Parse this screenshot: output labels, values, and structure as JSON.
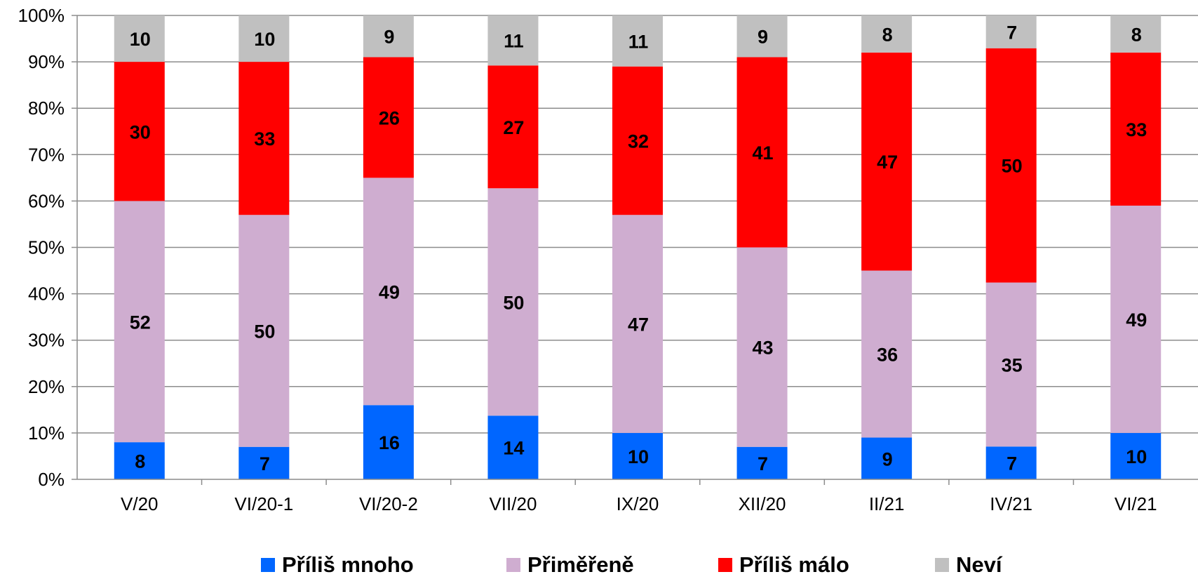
{
  "chart_data": {
    "type": "bar",
    "stacked": true,
    "percent": true,
    "categories": [
      "V/20",
      "VI/20-1",
      "VI/20-2",
      "VII/20",
      "IX/20",
      "XII/20",
      "II/21",
      "IV/21",
      "VI/21"
    ],
    "series": [
      {
        "name": "Příliš mnoho",
        "color": "#0066ff",
        "values": [
          8,
          7,
          16,
          14,
          10,
          7,
          9,
          7,
          10
        ]
      },
      {
        "name": "Přiměřeně",
        "color": "#cfadd0",
        "values": [
          52,
          50,
          49,
          50,
          47,
          43,
          36,
          35,
          49
        ]
      },
      {
        "name": "Příliš málo",
        "color": "#ff0000",
        "values": [
          30,
          33,
          26,
          27,
          32,
          41,
          47,
          50,
          33
        ]
      },
      {
        "name": "Neví",
        "color": "#c0c0c0",
        "values": [
          10,
          10,
          9,
          11,
          11,
          9,
          8,
          7,
          8
        ]
      }
    ],
    "y_ticks": [
      "0%",
      "10%",
      "20%",
      "30%",
      "40%",
      "50%",
      "60%",
      "70%",
      "80%",
      "90%",
      "100%"
    ],
    "ylim": [
      0,
      100
    ],
    "grid": true,
    "legend_position": "bottom"
  }
}
